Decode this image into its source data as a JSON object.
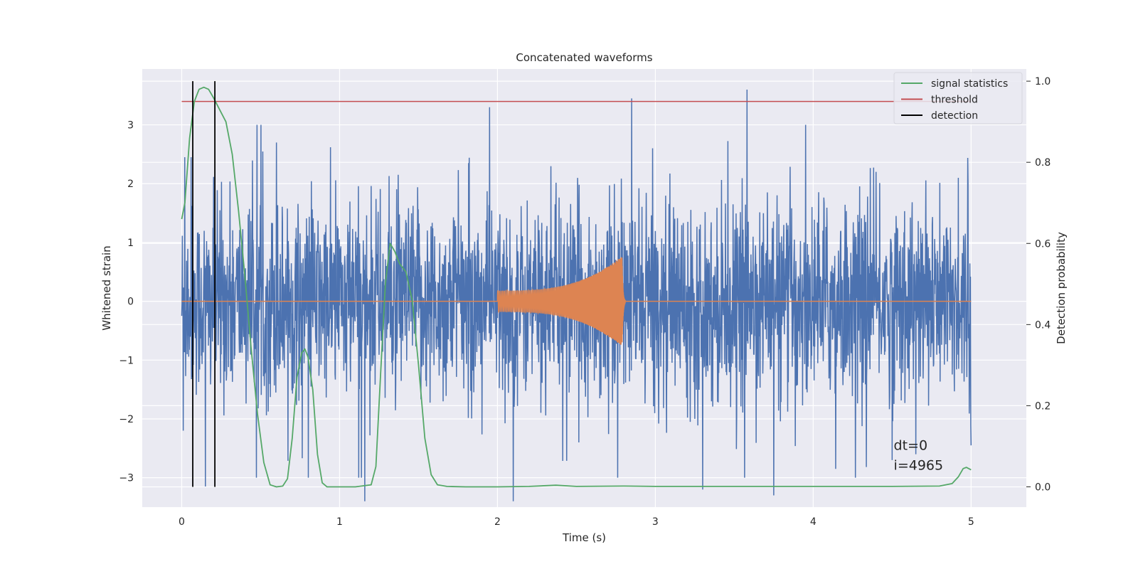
{
  "chart_data": {
    "type": "line",
    "title": "Concatenated waveforms",
    "xlabel": "Time (s)",
    "ylabel": "Whitened strain",
    "ylabel_right": "Detection probability",
    "xlim": [
      -0.25,
      5.35
    ],
    "ylim": [
      -3.5,
      3.95
    ],
    "ylim_right": [
      -0.05,
      1.03
    ],
    "xticks": [
      0,
      1,
      2,
      3,
      4,
      5
    ],
    "xtick_labels": [
      "0",
      "1",
      "2",
      "3",
      "4",
      "5"
    ],
    "yticks": [
      -3,
      -2,
      -1,
      0,
      1,
      2,
      3
    ],
    "ytick_labels": [
      "−3",
      "−2",
      "−1",
      "0",
      "1",
      "2",
      "3"
    ],
    "yticks_right": [
      0.0,
      0.2,
      0.4,
      0.6,
      0.8,
      1.0
    ],
    "ytick_labels_right": [
      "0.0",
      "0.2",
      "0.4",
      "0.6",
      "0.8",
      "1.0"
    ],
    "grid": true,
    "legend_position": "top-right",
    "colors": {
      "strain": "#4c72b0",
      "injection": "#dd8452",
      "signal_statistics": "#55a868",
      "threshold": "#c44e52",
      "detection": "#000000",
      "plot_background": "#eaeaf2",
      "grid": "#ffffff"
    },
    "series": [
      {
        "key": "strain",
        "axis": "left",
        "x_range": [
          0,
          5
        ],
        "noise_amplitude_typical": 0.8,
        "peaks": [
          [
            0.01,
            -2.2
          ],
          [
            0.02,
            2.45
          ],
          [
            0.06,
            2.45
          ],
          [
            0.15,
            -3.15
          ],
          [
            0.6,
            2.7
          ],
          [
            1.16,
            -3.4
          ],
          [
            1.95,
            3.3
          ],
          [
            2.1,
            -3.4
          ],
          [
            2.85,
            3.45
          ],
          [
            3.3,
            -3.2
          ],
          [
            3.58,
            3.6
          ],
          [
            3.75,
            -3.3
          ],
          [
            4.5,
            -2.7
          ],
          [
            4.65,
            -2.6
          ],
          [
            4.92,
            2.1
          ],
          [
            4.98,
            2.0
          ],
          [
            5.0,
            -2.45
          ]
        ]
      },
      {
        "key": "injection",
        "axis": "left",
        "x_range": [
          2.0,
          2.81
        ],
        "amplitude_start": 0.18,
        "amplitude_peak": 0.78,
        "peak_time": 2.79
      },
      {
        "name": "signal statistics",
        "axis": "right",
        "x": [
          0.0,
          0.02,
          0.05,
          0.08,
          0.11,
          0.14,
          0.17,
          0.2,
          0.24,
          0.28,
          0.32,
          0.36,
          0.4,
          0.44,
          0.48,
          0.52,
          0.56,
          0.6,
          0.64,
          0.67,
          0.7,
          0.73,
          0.76,
          0.78,
          0.8,
          0.83,
          0.86,
          0.89,
          0.92,
          0.96,
          1.0,
          1.1,
          1.2,
          1.23,
          1.26,
          1.29,
          1.32,
          1.35,
          1.38,
          1.42,
          1.46,
          1.5,
          1.54,
          1.58,
          1.62,
          1.68,
          1.8,
          2.0,
          2.2,
          2.37,
          2.5,
          2.8,
          3.0,
          3.5,
          4.0,
          4.5,
          4.8,
          4.88,
          4.92,
          4.95,
          4.97,
          5.0
        ],
        "values": [
          0.66,
          0.7,
          0.86,
          0.95,
          0.98,
          0.985,
          0.98,
          0.96,
          0.93,
          0.9,
          0.82,
          0.68,
          0.52,
          0.34,
          0.18,
          0.06,
          0.005,
          0.0,
          0.002,
          0.02,
          0.12,
          0.27,
          0.33,
          0.34,
          0.32,
          0.24,
          0.08,
          0.01,
          0.0,
          0.0,
          0.0,
          0.0,
          0.005,
          0.05,
          0.28,
          0.5,
          0.6,
          0.58,
          0.55,
          0.53,
          0.46,
          0.3,
          0.12,
          0.03,
          0.005,
          0.001,
          0.0,
          0.0,
          0.001,
          0.004,
          0.001,
          0.002,
          0.001,
          0.001,
          0.001,
          0.001,
          0.002,
          0.008,
          0.025,
          0.045,
          0.048,
          0.042
        ]
      },
      {
        "name": "threshold",
        "axis": "right",
        "x": [
          0,
          5
        ],
        "values": [
          0.95,
          0.95
        ]
      },
      {
        "name": "detection",
        "axis": "right",
        "type": "vlines",
        "x": [
          0.07,
          0.21
        ],
        "ymin": 0.0,
        "ymax": 1.0
      }
    ],
    "legend": [
      "signal statistics",
      "threshold",
      "detection"
    ],
    "annotation": {
      "lines": [
        "dt=0",
        "i=4965"
      ],
      "x": 4.51,
      "y": -2.77
    }
  }
}
